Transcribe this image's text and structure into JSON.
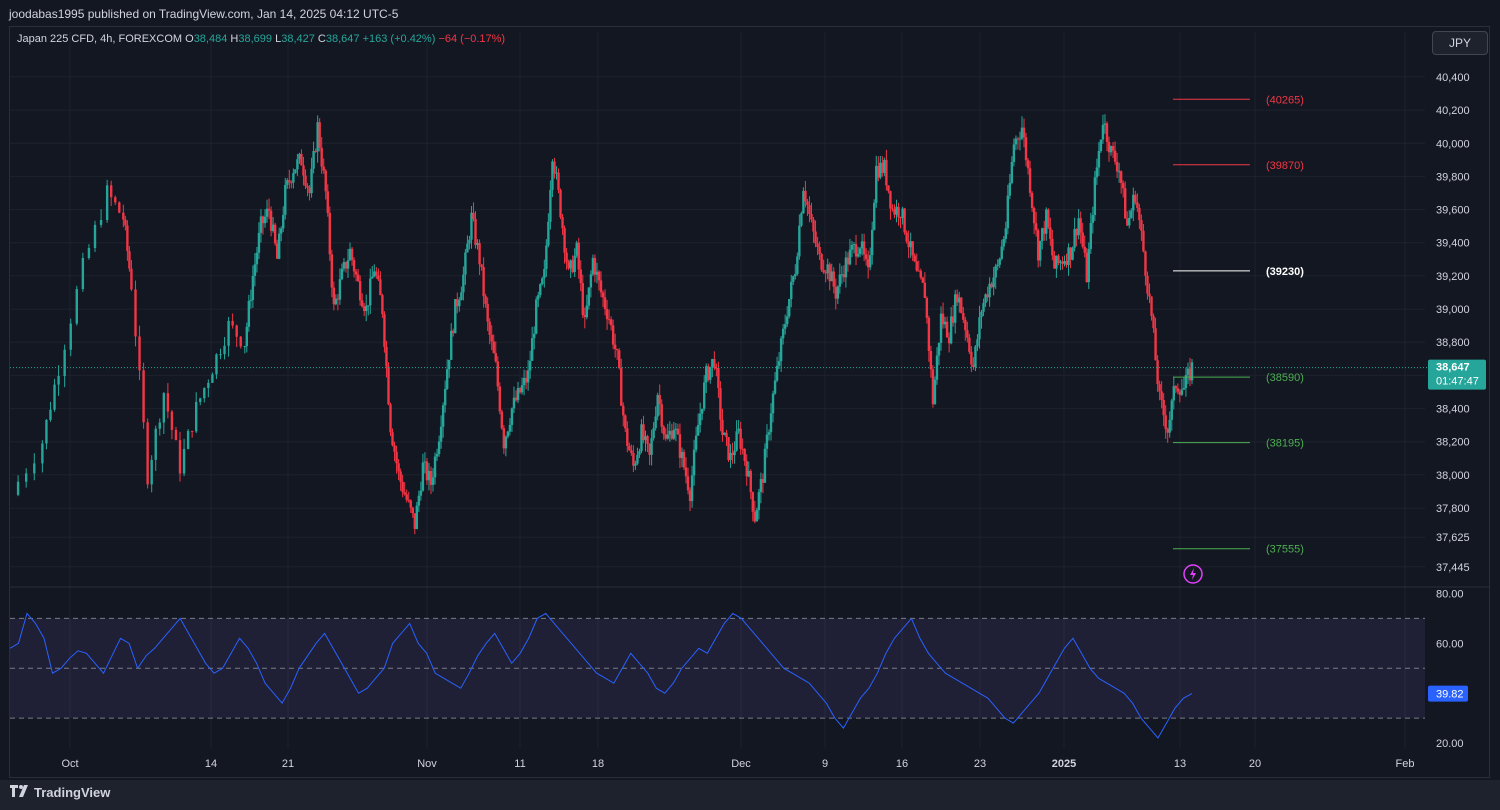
{
  "header": {
    "publisher": "joodabas1995 published on TradingView.com, Jan 14, 2025 04:12 UTC-5"
  },
  "legend": {
    "symbol": "Japan 225 CFD, 4h, FOREXCOM",
    "o_label": "O",
    "o_value": "38,484",
    "h_label": "H",
    "h_value": "38,699",
    "l_label": "L",
    "l_value": "38,427",
    "c_label": "C",
    "c_value": "38,647",
    "change": "+163 (+0.42%)",
    "change2": "−64 (−0.17%)"
  },
  "currency_button": "JPY",
  "footer": {
    "brand": "TradingView",
    "logo_icon": "tradingview-logo-icon"
  },
  "colors": {
    "up": "#26a69a",
    "down": "#f23645",
    "rsi": "#2962ff",
    "resistance": "#f23645",
    "pivot": "#ffffff",
    "support": "#4caf50"
  },
  "chart_data": [
    {
      "type": "candlestick",
      "title": "Japan 225 CFD, 4h, FOREXCOM",
      "x_tick_labels": [
        "Oct",
        "14",
        "21",
        "Nov",
        "11",
        "18",
        "Dec",
        "9",
        "16",
        "23",
        "2025",
        "13",
        "20",
        "Feb"
      ],
      "y_tick_labels": [
        "40,400",
        "40,200",
        "40,000",
        "39,800",
        "39,600",
        "39,400",
        "39,200",
        "39,000",
        "38,800",
        "38,600",
        "38,400",
        "38,200",
        "38,000",
        "37,800",
        "37,625",
        "37,445"
      ],
      "ylim": [
        37330,
        40490
      ],
      "last_price": {
        "value": 38647,
        "label": "38,647",
        "countdown": "01:47:47"
      },
      "series_close_path": [
        [
          0,
          37880
        ],
        [
          4,
          38200
        ],
        [
          6,
          38650
        ],
        [
          9,
          39250
        ],
        [
          12,
          39700
        ],
        [
          14,
          39550
        ],
        [
          15,
          39150
        ],
        [
          17,
          38000
        ],
        [
          19,
          38500
        ],
        [
          21,
          38050
        ],
        [
          23,
          38400
        ],
        [
          25,
          38650
        ],
        [
          27,
          38900
        ],
        [
          29,
          38800
        ],
        [
          30,
          39200
        ],
        [
          31,
          39500
        ],
        [
          32,
          39600
        ],
        [
          33,
          39300
        ],
        [
          34,
          39700
        ],
        [
          35,
          39850
        ],
        [
          36,
          39900
        ],
        [
          37,
          39700
        ],
        [
          38,
          40100
        ],
        [
          39,
          39700
        ],
        [
          40,
          39000
        ],
        [
          41,
          39200
        ],
        [
          42,
          39350
        ],
        [
          43,
          39150
        ],
        [
          44,
          39000
        ],
        [
          45,
          39250
        ],
        [
          46,
          39000
        ],
        [
          47,
          38300
        ],
        [
          48,
          38000
        ],
        [
          49,
          37850
        ],
        [
          50,
          37700
        ],
        [
          51,
          38050
        ],
        [
          52,
          37950
        ],
        [
          53,
          38250
        ],
        [
          54,
          38650
        ],
        [
          55,
          39000
        ],
        [
          56,
          39200
        ],
        [
          57,
          39550
        ],
        [
          58,
          39300
        ],
        [
          59,
          38900
        ],
        [
          60,
          38650
        ],
        [
          61,
          38200
        ],
        [
          62,
          38400
        ],
        [
          63,
          38500
        ],
        [
          64,
          38600
        ],
        [
          65,
          39000
        ],
        [
          66,
          39200
        ],
        [
          67,
          39950
        ],
        [
          68,
          39600
        ],
        [
          69,
          39200
        ],
        [
          70,
          39350
        ],
        [
          71,
          38900
        ],
        [
          72,
          39300
        ],
        [
          73,
          39100
        ],
        [
          74,
          38950
        ],
        [
          75,
          38700
        ],
        [
          76,
          38250
        ],
        [
          77,
          38050
        ],
        [
          78,
          38250
        ],
        [
          79,
          38100
        ],
        [
          80,
          38500
        ],
        [
          81,
          38200
        ],
        [
          82,
          38300
        ],
        [
          83,
          38100
        ],
        [
          84,
          37900
        ],
        [
          85,
          38300
        ],
        [
          86,
          38600
        ],
        [
          87,
          38700
        ],
        [
          88,
          38250
        ],
        [
          89,
          38100
        ],
        [
          90,
          38250
        ],
        [
          91,
          38050
        ],
        [
          92,
          37750
        ],
        [
          93,
          38000
        ],
        [
          94,
          38400
        ],
        [
          95,
          38700
        ],
        [
          96,
          39000
        ],
        [
          97,
          39250
        ],
        [
          98,
          39750
        ],
        [
          99,
          39500
        ],
        [
          100,
          39300
        ],
        [
          101,
          39250
        ],
        [
          102,
          39100
        ],
        [
          103,
          39250
        ],
        [
          104,
          39350
        ],
        [
          105,
          39400
        ],
        [
          106,
          39200
        ],
        [
          107,
          39850
        ],
        [
          108,
          39850
        ],
        [
          109,
          39600
        ],
        [
          110,
          39600
        ],
        [
          111,
          39400
        ],
        [
          112,
          39200
        ],
        [
          113,
          39100
        ],
        [
          114,
          38450
        ],
        [
          115,
          38950
        ],
        [
          116,
          38850
        ],
        [
          117,
          39100
        ],
        [
          118,
          38900
        ],
        [
          119,
          38650
        ],
        [
          120,
          39000
        ],
        [
          121,
          39150
        ],
        [
          122,
          39250
        ],
        [
          123,
          39500
        ],
        [
          124,
          40000
        ],
        [
          125,
          40100
        ],
        [
          126,
          39750
        ],
        [
          127,
          39350
        ],
        [
          128,
          39550
        ],
        [
          129,
          39250
        ],
        [
          130,
          39300
        ],
        [
          131,
          39350
        ],
        [
          132,
          39550
        ],
        [
          133,
          39200
        ],
        [
          134,
          39750
        ],
        [
          135,
          40150
        ],
        [
          136,
          39950
        ],
        [
          137,
          39850
        ],
        [
          138,
          39500
        ],
        [
          139,
          39700
        ],
        [
          140,
          39350
        ],
        [
          141,
          38950
        ],
        [
          142,
          38450
        ],
        [
          143,
          38280
        ],
        [
          144,
          38550
        ],
        [
          145,
          38520
        ],
        [
          146,
          38647
        ]
      ],
      "horizontal_levels": [
        {
          "value": 40265,
          "label": "(40265)",
          "kind": "resistance"
        },
        {
          "value": 39870,
          "label": "(39870)",
          "kind": "resistance"
        },
        {
          "value": 39230,
          "label": "(39230)",
          "kind": "pivot"
        },
        {
          "value": 38590,
          "label": "(38590)",
          "kind": "support"
        },
        {
          "value": 38195,
          "label": "(38195)",
          "kind": "support"
        },
        {
          "value": 37555,
          "label": "(37555)",
          "kind": "support"
        }
      ]
    },
    {
      "type": "line",
      "title": "RSI",
      "y_tick_labels": [
        "80.00",
        "60.00",
        "20.00"
      ],
      "ylim": [
        18,
        81
      ],
      "bands": {
        "upper": 70,
        "middle": 50,
        "lower": 30
      },
      "last_value": {
        "value": 39.82,
        "label": "39.82"
      },
      "series": [
        {
          "values": [
            58,
            60,
            72,
            68,
            62,
            48,
            50,
            54,
            57,
            56,
            52,
            48,
            55,
            62,
            60,
            50,
            55,
            58,
            62,
            66,
            70,
            64,
            58,
            52,
            48,
            50,
            56,
            62,
            58,
            52,
            44,
            40,
            36,
            42,
            50,
            55,
            60,
            64,
            58,
            52,
            46,
            40,
            42,
            46,
            50,
            60,
            64,
            68,
            60,
            56,
            48,
            46,
            44,
            42,
            48,
            55,
            60,
            64,
            58,
            52,
            56,
            62,
            70,
            72,
            68,
            64,
            60,
            56,
            52,
            48,
            46,
            44,
            50,
            56,
            52,
            48,
            42,
            40,
            44,
            50,
            54,
            58,
            56,
            62,
            68,
            72,
            70,
            66,
            62,
            58,
            54,
            50,
            48,
            46,
            44,
            40,
            36,
            30,
            26,
            32,
            38,
            42,
            48,
            56,
            62,
            66,
            70,
            62,
            56,
            52,
            48,
            46,
            44,
            42,
            40,
            38,
            34,
            30,
            28,
            32,
            36,
            40,
            46,
            52,
            58,
            62,
            56,
            50,
            46,
            44,
            42,
            40,
            36,
            30,
            26,
            22,
            28,
            34,
            38,
            39.82
          ]
        }
      ]
    }
  ]
}
